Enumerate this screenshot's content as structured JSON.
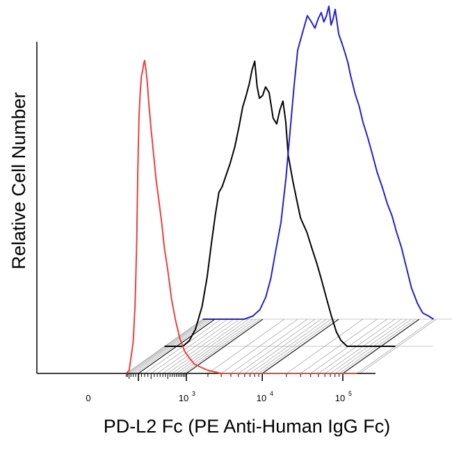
{
  "chart_data": {
    "type": "line",
    "subtype": "offset flow cytometry histogram overlay",
    "xlabel": "PD-L2 Fc (PE Anti-Human IgG Fc)",
    "ylabel": "Relative Cell Number",
    "x_scale": "logicle (biexponential)",
    "x_tick_labels": [
      {
        "base": "0",
        "exp": ""
      },
      {
        "base": "10",
        "exp": "3"
      },
      {
        "base": "10",
        "exp": "4"
      },
      {
        "base": "10",
        "exp": "5"
      }
    ],
    "grid": true,
    "legend": "none",
    "series": [
      {
        "color": "#e8413d",
        "offset_level": 0,
        "peak_fluorescence": 80,
        "points": [
          [
            -300,
            0
          ],
          [
            -200,
            1
          ],
          [
            -150,
            5
          ],
          [
            -100,
            10
          ],
          [
            -60,
            22
          ],
          [
            -30,
            42
          ],
          [
            -10,
            65
          ],
          [
            10,
            82
          ],
          [
            30,
            90
          ],
          [
            50,
            95
          ],
          [
            70,
            97
          ],
          [
            85,
            99
          ],
          [
            100,
            100
          ],
          [
            120,
            97
          ],
          [
            140,
            93
          ],
          [
            170,
            85
          ],
          [
            200,
            78
          ],
          [
            240,
            70
          ],
          [
            280,
            62
          ],
          [
            330,
            55
          ],
          [
            380,
            48
          ],
          [
            430,
            40
          ],
          [
            500,
            33
          ],
          [
            580,
            24
          ],
          [
            680,
            17
          ],
          [
            800,
            11
          ],
          [
            950,
            7
          ],
          [
            1100,
            5
          ],
          [
            1300,
            3
          ],
          [
            1600,
            2
          ],
          [
            2000,
            1
          ],
          [
            3000,
            0
          ],
          [
            10000,
            0
          ],
          [
            150000,
            0
          ]
        ]
      },
      {
        "color": "#000000",
        "offset_level": 1,
        "peak_fluorescence": 2500,
        "points": [
          [
            -300,
            0
          ],
          [
            100,
            0
          ],
          [
            200,
            2
          ],
          [
            300,
            6
          ],
          [
            420,
            14
          ],
          [
            520,
            24
          ],
          [
            620,
            36
          ],
          [
            720,
            46
          ],
          [
            820,
            54
          ],
          [
            920,
            56
          ],
          [
            1050,
            60
          ],
          [
            1200,
            64
          ],
          [
            1400,
            70
          ],
          [
            1600,
            77
          ],
          [
            1800,
            84
          ],
          [
            2000,
            88
          ],
          [
            2200,
            92
          ],
          [
            2400,
            97
          ],
          [
            2600,
            100
          ],
          [
            2800,
            91
          ],
          [
            3000,
            87
          ],
          [
            3300,
            88
          ],
          [
            3600,
            91
          ],
          [
            4000,
            89
          ],
          [
            4500,
            80
          ],
          [
            5000,
            78
          ],
          [
            5500,
            83
          ],
          [
            6000,
            86
          ],
          [
            6500,
            79
          ],
          [
            7000,
            67
          ],
          [
            8000,
            58
          ],
          [
            9000,
            51
          ],
          [
            10000,
            45
          ],
          [
            12000,
            40
          ],
          [
            14000,
            34
          ],
          [
            16000,
            29
          ],
          [
            18000,
            24
          ],
          [
            21000,
            17
          ],
          [
            24000,
            11
          ],
          [
            28000,
            5
          ],
          [
            32000,
            2
          ],
          [
            38000,
            0
          ],
          [
            150000,
            0
          ]
        ]
      },
      {
        "color": "#2020cc",
        "offset_level": 2,
        "peak_fluorescence": 10000,
        "points": [
          [
            -300,
            0
          ],
          [
            500,
            0
          ],
          [
            700,
            1
          ],
          [
            900,
            3
          ],
          [
            1100,
            7
          ],
          [
            1300,
            13
          ],
          [
            1500,
            21
          ],
          [
            1800,
            31
          ],
          [
            2100,
            45
          ],
          [
            2400,
            61
          ],
          [
            2700,
            75
          ],
          [
            3000,
            86
          ],
          [
            3500,
            92
          ],
          [
            4000,
            97
          ],
          [
            4500,
            95
          ],
          [
            5000,
            93
          ],
          [
            5500,
            96
          ],
          [
            6000,
            98
          ],
          [
            6500,
            95
          ],
          [
            7000,
            97
          ],
          [
            7500,
            100
          ],
          [
            8000,
            94
          ],
          [
            8500,
            96
          ],
          [
            9000,
            99
          ],
          [
            10000,
            91
          ],
          [
            11000,
            88
          ],
          [
            12000,
            85
          ],
          [
            13000,
            82
          ],
          [
            14000,
            78
          ],
          [
            16000,
            72
          ],
          [
            18000,
            68
          ],
          [
            20000,
            63
          ],
          [
            23000,
            58
          ],
          [
            26000,
            53
          ],
          [
            30000,
            47
          ],
          [
            35000,
            42
          ],
          [
            40000,
            37
          ],
          [
            46000,
            33
          ],
          [
            52000,
            28
          ],
          [
            60000,
            23
          ],
          [
            70000,
            16
          ],
          [
            80000,
            10
          ],
          [
            95000,
            5
          ],
          [
            110000,
            2
          ],
          [
            130000,
            1
          ],
          [
            150000,
            0
          ]
        ]
      }
    ]
  }
}
